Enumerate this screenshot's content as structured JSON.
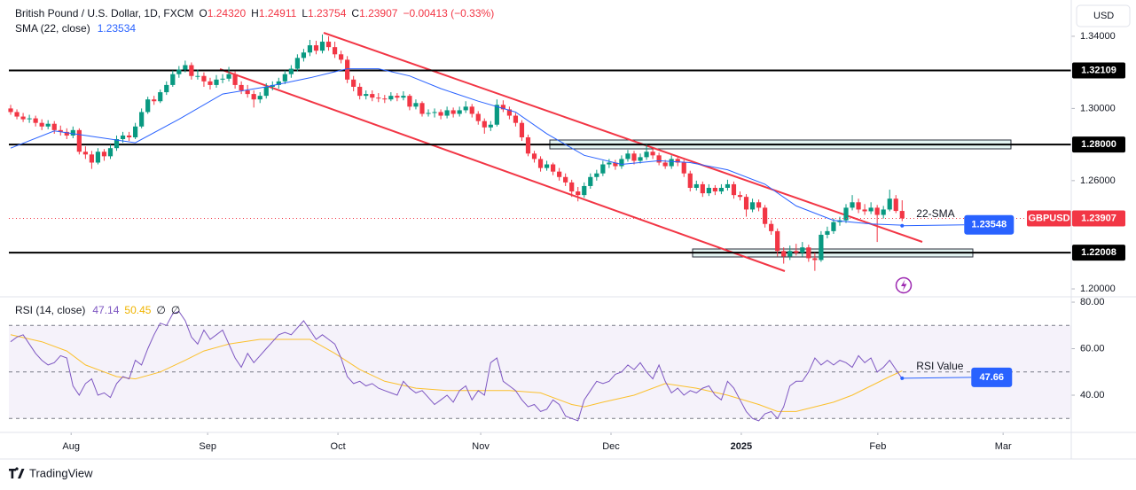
{
  "chart_data": {
    "type": "candlestick",
    "header": {
      "symbol": "British Pound / U.S. Dollar, 1D, FXCM",
      "fields": [
        {
          "key": "O",
          "text": "1.24320"
        },
        {
          "key": "H",
          "text": "1.24911"
        },
        {
          "key": "L",
          "text": "1.23754"
        },
        {
          "key": "C",
          "text": "1.23907"
        }
      ],
      "change": "−0.00413 (−0.33%)"
    },
    "currency": "USD",
    "up_color": "#089981",
    "down_color": "#f23645",
    "xlim": [
      -1.71,
      170.13
    ],
    "xticks": [
      {
        "value": 9.7,
        "label": "Aug"
      },
      {
        "value": 31.6,
        "label": "Sep"
      },
      {
        "value": 52.5,
        "label": "Oct"
      },
      {
        "value": 75.4,
        "label": "Nov"
      },
      {
        "value": 96.3,
        "label": "Dec"
      },
      {
        "value": 117.2,
        "label": "2025"
      },
      {
        "value": 139.1,
        "label": "Feb"
      },
      {
        "value": 159.2,
        "label": "Mar"
      }
    ],
    "ylim": [
      1.1956,
      1.3601
    ],
    "yticks": [
      {
        "value": 1.2,
        "label": "1.20000"
      },
      {
        "value": 1.26,
        "label": "1.26000"
      },
      {
        "value": 1.3,
        "label": "1.30000"
      },
      {
        "value": 1.34,
        "label": "1.34000"
      }
    ],
    "grid": false,
    "levels": [
      1.32109,
      {
        "value": 1.28,
        "label": "1.28000"
      },
      1.22008
    ],
    "symbol_tag": "GBPUSD",
    "ohlc": [
      [
        1.3,
        1.302,
        1.2965,
        1.298
      ],
      [
        1.298,
        1.2995,
        1.294,
        1.2955
      ],
      [
        1.2955,
        1.2975,
        1.2925,
        1.294
      ],
      [
        1.294,
        1.2965,
        1.292,
        1.2945
      ],
      [
        1.2945,
        1.296,
        1.29,
        1.292
      ],
      [
        1.292,
        1.294,
        1.288,
        1.29
      ],
      [
        1.29,
        1.2935,
        1.2885,
        1.2915
      ],
      [
        1.2915,
        1.293,
        1.286,
        1.288
      ],
      [
        1.288,
        1.2905,
        1.285,
        1.287
      ],
      [
        1.287,
        1.289,
        1.283,
        1.285
      ],
      [
        1.285,
        1.29,
        1.2835,
        1.288
      ],
      [
        1.288,
        1.289,
        1.2745,
        1.276
      ],
      [
        1.276,
        1.279,
        1.272,
        1.2745
      ],
      [
        1.2745,
        1.2765,
        1.2665,
        1.27
      ],
      [
        1.27,
        1.278,
        1.269,
        1.276
      ],
      [
        1.276,
        1.2775,
        1.271,
        1.2735
      ],
      [
        1.2735,
        1.28,
        1.272,
        1.278
      ],
      [
        1.278,
        1.285,
        1.2765,
        1.283
      ],
      [
        1.283,
        1.287,
        1.281,
        1.285
      ],
      [
        1.285,
        1.287,
        1.282,
        1.284
      ],
      [
        1.284,
        1.292,
        1.283,
        1.29
      ],
      [
        1.29,
        1.3,
        1.289,
        1.298
      ],
      [
        1.298,
        1.3065,
        1.297,
        1.305
      ],
      [
        1.305,
        1.307,
        1.302,
        1.304
      ],
      [
        1.304,
        1.3105,
        1.303,
        1.309
      ],
      [
        1.309,
        1.315,
        1.3075,
        1.313
      ],
      [
        1.313,
        1.321,
        1.312,
        1.319
      ],
      [
        1.319,
        1.3235,
        1.317,
        1.3215
      ],
      [
        1.3215,
        1.3265,
        1.32,
        1.324
      ],
      [
        1.324,
        1.3255,
        1.316,
        1.318
      ],
      [
        1.318,
        1.3215,
        1.316,
        1.318
      ],
      [
        1.318,
        1.32,
        1.312,
        1.315
      ],
      [
        1.315,
        1.317,
        1.3105,
        1.313
      ],
      [
        1.313,
        1.3185,
        1.3115,
        1.316
      ],
      [
        1.316,
        1.319,
        1.314,
        1.3165
      ],
      [
        1.3165,
        1.323,
        1.315,
        1.319
      ],
      [
        1.319,
        1.3205,
        1.311,
        1.313
      ],
      [
        1.313,
        1.315,
        1.308,
        1.31
      ],
      [
        1.31,
        1.313,
        1.306,
        1.308
      ],
      [
        1.308,
        1.31,
        1.3005,
        1.305
      ],
      [
        1.305,
        1.309,
        1.303,
        1.307
      ],
      [
        1.307,
        1.314,
        1.3055,
        1.312
      ],
      [
        1.312,
        1.315,
        1.31,
        1.313
      ],
      [
        1.313,
        1.317,
        1.311,
        1.315
      ],
      [
        1.315,
        1.321,
        1.3135,
        1.319
      ],
      [
        1.319,
        1.324,
        1.317,
        1.322
      ],
      [
        1.322,
        1.33,
        1.3205,
        1.328
      ],
      [
        1.328,
        1.333,
        1.326,
        1.331
      ],
      [
        1.331,
        1.338,
        1.329,
        1.335
      ],
      [
        1.335,
        1.3375,
        1.33,
        1.332
      ],
      [
        1.332,
        1.341,
        1.3305,
        1.337
      ],
      [
        1.337,
        1.34,
        1.332,
        1.334
      ],
      [
        1.334,
        1.337,
        1.328,
        1.33
      ],
      [
        1.33,
        1.332,
        1.325,
        1.327
      ],
      [
        1.327,
        1.329,
        1.314,
        1.316
      ],
      [
        1.316,
        1.318,
        1.3095,
        1.312
      ],
      [
        1.312,
        1.314,
        1.305,
        1.307
      ],
      [
        1.307,
        1.31,
        1.305,
        1.308
      ],
      [
        1.308,
        1.31,
        1.304,
        1.306
      ],
      [
        1.306,
        1.3085,
        1.3035,
        1.3055
      ],
      [
        1.3055,
        1.3075,
        1.303,
        1.305
      ],
      [
        1.305,
        1.309,
        1.304,
        1.307
      ],
      [
        1.307,
        1.3085,
        1.304,
        1.306
      ],
      [
        1.306,
        1.3095,
        1.3045,
        1.307
      ],
      [
        1.307,
        1.308,
        1.299,
        1.301
      ],
      [
        1.301,
        1.305,
        1.2995,
        1.303
      ],
      [
        1.303,
        1.304,
        1.2955,
        1.297
      ],
      [
        1.297,
        1.2995,
        1.2955,
        1.2975
      ],
      [
        1.2975,
        1.3,
        1.295,
        1.298
      ],
      [
        1.298,
        1.2995,
        1.294,
        1.296
      ],
      [
        1.296,
        1.301,
        1.2945,
        1.299
      ],
      [
        1.299,
        1.3005,
        1.295,
        1.297
      ],
      [
        1.297,
        1.301,
        1.2955,
        1.299
      ],
      [
        1.299,
        1.304,
        1.2975,
        1.301
      ],
      [
        1.301,
        1.3025,
        1.295,
        1.297
      ],
      [
        1.297,
        1.2985,
        1.291,
        1.293
      ],
      [
        1.293,
        1.2945,
        1.286,
        1.2895
      ],
      [
        1.2895,
        1.293,
        1.2875,
        1.291
      ],
      [
        1.291,
        1.305,
        1.29,
        1.302
      ],
      [
        1.302,
        1.3045,
        1.298,
        1.2995
      ],
      [
        1.2995,
        1.301,
        1.294,
        1.296
      ],
      [
        1.296,
        1.2975,
        1.29,
        1.292
      ],
      [
        1.292,
        1.2935,
        1.282,
        1.284
      ],
      [
        1.284,
        1.2855,
        1.2735,
        1.275
      ],
      [
        1.275,
        1.2765,
        1.27,
        1.272
      ],
      [
        1.272,
        1.2735,
        1.265,
        1.267
      ],
      [
        1.267,
        1.271,
        1.2655,
        1.269
      ],
      [
        1.269,
        1.27,
        1.263,
        1.265
      ],
      [
        1.265,
        1.267,
        1.26,
        1.262
      ],
      [
        1.262,
        1.264,
        1.257,
        1.259
      ],
      [
        1.259,
        1.2605,
        1.251,
        1.254
      ],
      [
        1.254,
        1.2565,
        1.2485,
        1.252
      ],
      [
        1.252,
        1.259,
        1.2505,
        1.257
      ],
      [
        1.257,
        1.264,
        1.2555,
        1.262
      ],
      [
        1.262,
        1.266,
        1.26,
        1.264
      ],
      [
        1.264,
        1.271,
        1.2625,
        1.269
      ],
      [
        1.269,
        1.272,
        1.267,
        1.27
      ],
      [
        1.27,
        1.2715,
        1.266,
        1.268
      ],
      [
        1.268,
        1.274,
        1.2665,
        1.272
      ],
      [
        1.272,
        1.277,
        1.2705,
        1.275
      ],
      [
        1.275,
        1.2765,
        1.269,
        1.271
      ],
      [
        1.271,
        1.275,
        1.2695,
        1.273
      ],
      [
        1.273,
        1.28,
        1.2715,
        1.276
      ],
      [
        1.276,
        1.2775,
        1.272,
        1.274
      ],
      [
        1.274,
        1.2755,
        1.2685,
        1.27
      ],
      [
        1.27,
        1.2715,
        1.2665,
        1.268
      ],
      [
        1.268,
        1.274,
        1.2665,
        1.272
      ],
      [
        1.272,
        1.2735,
        1.268,
        1.27
      ],
      [
        1.27,
        1.2715,
        1.262,
        1.264
      ],
      [
        1.264,
        1.2655,
        1.254,
        1.256
      ],
      [
        1.256,
        1.26,
        1.2545,
        1.258
      ],
      [
        1.258,
        1.2595,
        1.251,
        1.253
      ],
      [
        1.253,
        1.258,
        1.2515,
        1.256
      ],
      [
        1.256,
        1.2575,
        1.252,
        1.254
      ],
      [
        1.254,
        1.258,
        1.2525,
        1.256
      ],
      [
        1.256,
        1.2605,
        1.2545,
        1.258
      ],
      [
        1.258,
        1.2595,
        1.25,
        1.252
      ],
      [
        1.252,
        1.254,
        1.249,
        1.251
      ],
      [
        1.251,
        1.2525,
        1.24,
        1.244
      ],
      [
        1.244,
        1.25,
        1.2425,
        1.248
      ],
      [
        1.248,
        1.2495,
        1.243,
        1.245
      ],
      [
        1.245,
        1.2465,
        1.234,
        1.236
      ],
      [
        1.236,
        1.238,
        1.23,
        1.232
      ],
      [
        1.232,
        1.2335,
        1.218,
        1.221
      ],
      [
        1.221,
        1.223,
        1.214,
        1.218
      ],
      [
        1.218,
        1.224,
        1.216,
        1.221
      ],
      [
        1.221,
        1.225,
        1.2185,
        1.22
      ],
      [
        1.22,
        1.226,
        1.218,
        1.223
      ],
      [
        1.223,
        1.2245,
        1.215,
        1.217
      ],
      [
        1.217,
        1.22,
        1.21,
        1.216
      ],
      [
        1.216,
        1.232,
        1.215,
        1.23
      ],
      [
        1.23,
        1.2345,
        1.228,
        1.232
      ],
      [
        1.232,
        1.239,
        1.2305,
        1.237
      ],
      [
        1.237,
        1.24,
        1.235,
        1.238
      ],
      [
        1.238,
        1.247,
        1.2365,
        1.245
      ],
      [
        1.245,
        1.252,
        1.2435,
        1.248
      ],
      [
        1.248,
        1.25,
        1.242,
        1.244
      ],
      [
        1.244,
        1.247,
        1.241,
        1.243
      ],
      [
        1.243,
        1.248,
        1.2415,
        1.245
      ],
      [
        1.245,
        1.2465,
        1.226,
        1.241
      ],
      [
        1.241,
        1.246,
        1.239,
        1.244
      ],
      [
        1.244,
        1.255,
        1.243,
        1.25
      ],
      [
        1.25,
        1.252,
        1.242,
        1.2432
      ],
      [
        1.2432,
        1.24911,
        1.23754,
        1.23907
      ]
    ],
    "sma": {
      "name": "SMA (22, close)",
      "color": "#2962ff",
      "x": [
        0,
        7,
        12,
        20,
        27,
        34,
        41,
        48,
        54,
        59,
        64,
        69,
        75,
        81,
        86,
        92,
        98,
        104,
        109,
        115,
        121,
        126,
        132,
        138,
        143
      ],
      "values": [
        1.278,
        1.2875,
        1.285,
        1.281,
        1.294,
        1.308,
        1.312,
        1.317,
        1.322,
        1.322,
        1.318,
        1.311,
        1.304,
        1.298,
        1.286,
        1.274,
        1.269,
        1.271,
        1.27,
        1.266,
        1.258,
        1.246,
        1.238,
        1.236,
        1.23534
      ],
      "annotation": {
        "text": "22-SMA",
        "value": 1.23548
      }
    },
    "rsi": {
      "name": "RSI (14, close)",
      "color": "#7e57c2",
      "extra": [
        "∅",
        "∅"
      ],
      "ylim": [
        24,
        82.3
      ],
      "yticks": [
        {
          "value": 40,
          "label": "40.00"
        },
        {
          "value": 60,
          "label": "60.00"
        },
        {
          "value": 80,
          "label": "80.00"
        }
      ],
      "bands": [
        70,
        50,
        30
      ],
      "values": [
        63,
        65,
        66,
        62,
        58,
        55,
        53,
        54,
        57,
        56,
        44,
        40,
        45,
        47,
        40,
        41,
        39,
        45,
        48,
        47,
        55,
        53,
        60,
        66,
        71,
        70,
        75,
        76,
        72,
        65,
        62,
        68,
        64,
        66,
        68,
        62,
        56,
        52,
        58,
        54,
        57,
        60,
        63,
        66,
        67,
        66,
        69,
        72,
        68,
        64,
        66,
        64,
        62,
        56,
        48,
        45,
        46,
        44,
        45,
        43,
        42,
        41,
        40,
        46,
        43,
        41,
        42,
        39,
        36,
        38,
        40,
        37,
        42,
        44,
        38,
        42,
        40,
        54,
        56,
        46,
        44,
        42,
        38,
        35,
        36,
        33,
        34,
        38,
        36,
        31,
        30,
        29,
        38,
        42,
        46,
        45,
        46,
        49,
        50,
        53,
        51,
        54,
        50,
        47,
        53,
        46,
        41,
        43,
        40,
        42,
        41,
        43,
        44,
        40,
        38,
        46,
        43,
        38,
        33,
        30,
        29,
        32,
        33,
        30,
        35,
        44,
        46,
        46,
        50,
        56,
        53,
        55,
        53,
        55,
        54,
        52,
        57,
        54,
        56,
        50,
        52,
        55,
        51,
        47.14
      ],
      "ma": {
        "color": "#fbc02d",
        "x": [
          0,
          5,
          9,
          12,
          15,
          17,
          20,
          24,
          28,
          31,
          35,
          40,
          45,
          48,
          52,
          56,
          60,
          65,
          70,
          75,
          80,
          85,
          90,
          92,
          95,
          100,
          105,
          110,
          115,
          120,
          123,
          126,
          129,
          132,
          135,
          138,
          141,
          143
        ],
        "values": [
          66,
          63,
          59,
          53,
          50,
          48,
          47,
          50,
          55,
          59,
          62,
          64,
          64,
          64,
          58,
          51,
          46,
          43,
          42,
          42,
          42,
          41,
          36,
          35,
          37,
          40,
          45,
          43,
          40,
          36,
          33,
          33,
          35,
          37,
          40,
          44,
          48,
          50.45
        ]
      },
      "annotation": {
        "text": "RSI Value",
        "value": 47.66
      }
    }
  },
  "footer": {
    "brand": "TradingView"
  }
}
